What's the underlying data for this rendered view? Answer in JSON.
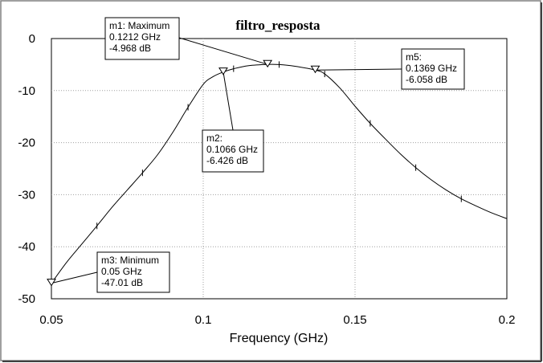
{
  "chart_data": {
    "type": "line",
    "title": "filtro_resposta",
    "xlabel": "Frequency (GHz)",
    "ylabel": "",
    "xlim": [
      0.05,
      0.2
    ],
    "ylim": [
      -50,
      0
    ],
    "x_ticks": [
      "0.05",
      "0.1",
      "0.15",
      "0.2"
    ],
    "y_ticks": [
      "0",
      "-10",
      "-20",
      "-30",
      "-40",
      "-50"
    ],
    "grid": true,
    "series": [
      {
        "x": [
          0.05,
          0.055,
          0.06,
          0.065,
          0.07,
          0.075,
          0.08,
          0.085,
          0.09,
          0.095,
          0.1,
          0.1033,
          0.1066,
          0.11,
          0.115,
          0.1212,
          0.125,
          0.13,
          0.1369,
          0.14,
          0.145,
          0.15,
          0.155,
          0.16,
          0.165,
          0.17,
          0.175,
          0.18,
          0.185,
          0.19,
          0.195,
          0.2
        ],
        "values": [
          -47.01,
          -43.0,
          -39.5,
          -36.0,
          -32.4,
          -29.1,
          -25.8,
          -22.3,
          -18.0,
          -13.2,
          -8.8,
          -7.3,
          -6.426,
          -5.8,
          -5.2,
          -4.968,
          -5.0,
          -5.3,
          -6.058,
          -6.8,
          -9.5,
          -13.0,
          -16.3,
          -19.3,
          -22.2,
          -24.8,
          -27.1,
          -29.1,
          -30.8,
          -32.2,
          -33.5,
          -34.6
        ]
      }
    ],
    "markers": [
      {
        "id": "m1",
        "label_line1": "m1: Maximum",
        "label_line2": "0.1212 GHz",
        "label_line3": "-4.968 dB",
        "x": 0.1212,
        "y": -4.968
      },
      {
        "id": "m2",
        "label_line1": "m2:",
        "label_line2": "0.1066 GHz",
        "label_line3": "-6.426 dB",
        "x": 0.1066,
        "y": -6.426
      },
      {
        "id": "m3",
        "label_line1": "m3: Minimum",
        "label_line2": "0.05 GHz",
        "label_line3": "-47.01 dB",
        "x": 0.05,
        "y": -47.01
      },
      {
        "id": "m5",
        "label_line1": "m5:",
        "label_line2": "0.1369 GHz",
        "label_line3": "-6.058 dB",
        "x": 0.1369,
        "y": -6.058
      }
    ]
  }
}
